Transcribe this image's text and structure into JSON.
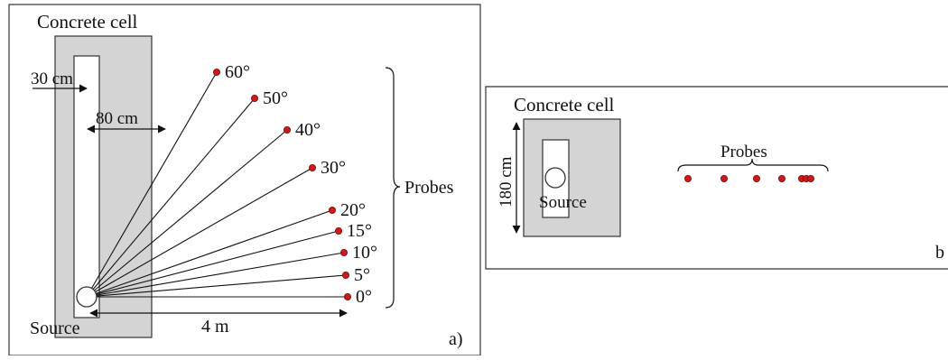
{
  "colors": {
    "cell_fill": "#d4d4d4",
    "outline": "#333333",
    "probe": "#cc1a1a",
    "probe_stroke": "#7a0d0d"
  },
  "panel_a": {
    "label": "a)",
    "cell_label": "Concrete cell",
    "wall_label": "30 cm",
    "inner_label": "80 cm",
    "source_label": "Source",
    "distance_label": "4 m",
    "probes_label": "Probes",
    "probe_angles": [
      {
        "label": "0°",
        "angle_deg": 0
      },
      {
        "label": "5°",
        "angle_deg": 5
      },
      {
        "label": "10°",
        "angle_deg": 10
      },
      {
        "label": "15°",
        "angle_deg": 15
      },
      {
        "label": "20°",
        "angle_deg": 20
      },
      {
        "label": "30°",
        "angle_deg": 30
      },
      {
        "label": "40°",
        "angle_deg": 40
      },
      {
        "label": "50°",
        "angle_deg": 50
      },
      {
        "label": "60°",
        "angle_deg": 60
      }
    ]
  },
  "panel_b": {
    "label": "b",
    "cell_label": "Concrete cell",
    "height_label": "180 cm",
    "source_label": "Source",
    "probes_label": "Probes",
    "probe_count": 7
  }
}
